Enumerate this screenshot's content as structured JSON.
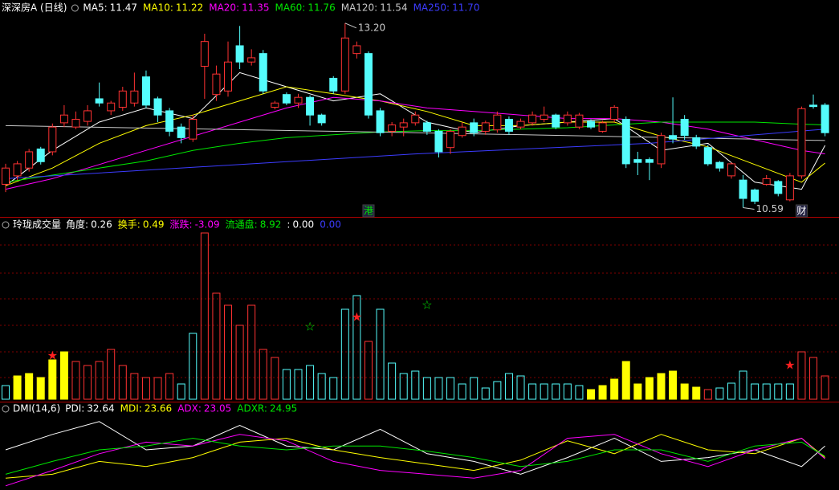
{
  "chart_data": {
    "type": "candlestick",
    "price_header": {
      "title": "深深房A (日线)",
      "items": [
        {
          "label": "MA5:",
          "value": 11.47,
          "color": "#ffffff",
          "x": [
            0,
            4,
            8,
            12,
            16,
            20,
            24,
            28,
            32,
            36,
            40,
            44,
            48,
            52,
            56,
            60,
            64,
            68,
            70
          ],
          "values": [
            10.9,
            11.4,
            11.8,
            12.0,
            11.85,
            12.5,
            12.3,
            12.1,
            12.2,
            11.8,
            11.65,
            11.75,
            11.8,
            11.85,
            11.4,
            11.5,
            10.95,
            10.85,
            11.47
          ]
        },
        {
          "label": "MA10:",
          "value": 11.22,
          "color": "#ffff00",
          "x": [
            0,
            4,
            8,
            12,
            16,
            20,
            24,
            28,
            32,
            36,
            40,
            44,
            48,
            52,
            56,
            60,
            64,
            68,
            70
          ],
          "values": [
            10.9,
            11.15,
            11.5,
            11.75,
            11.9,
            12.1,
            12.3,
            12.2,
            12.1,
            11.95,
            11.75,
            11.75,
            11.8,
            11.8,
            11.6,
            11.45,
            11.2,
            10.95,
            11.22
          ]
        },
        {
          "label": "MA20:",
          "value": 11.35,
          "color": "#ff00ff",
          "x": [
            0,
            4,
            8,
            12,
            16,
            20,
            24,
            28,
            32,
            36,
            40,
            44,
            48,
            52,
            56,
            60,
            64,
            68,
            70
          ],
          "values": [
            10.85,
            11.0,
            11.2,
            11.4,
            11.6,
            11.8,
            12.0,
            12.15,
            12.1,
            12.0,
            11.95,
            11.9,
            11.85,
            11.85,
            11.8,
            11.7,
            11.55,
            11.4,
            11.35
          ]
        },
        {
          "label": "MA60:",
          "value": 11.76,
          "color": "#00e600",
          "x": [
            0,
            4,
            8,
            12,
            16,
            20,
            24,
            28,
            32,
            36,
            40,
            44,
            48,
            52,
            56,
            60,
            64,
            68,
            70
          ],
          "values": [
            10.95,
            11.05,
            11.15,
            11.25,
            11.4,
            11.5,
            11.58,
            11.62,
            11.66,
            11.68,
            11.68,
            11.7,
            11.72,
            11.76,
            11.8,
            11.8,
            11.8,
            11.77,
            11.76
          ]
        },
        {
          "label": "MA120:",
          "value": 11.54,
          "color": "#c8c8c8",
          "x": [
            0,
            35,
            70
          ],
          "values": [
            11.75,
            11.65,
            11.54
          ]
        },
        {
          "label": "MA250:",
          "value": 11.7,
          "value_label": "11.70",
          "color": "#3c3cff",
          "x": [
            0,
            35,
            55,
            70
          ],
          "values": [
            11.0,
            11.35,
            11.5,
            11.7
          ]
        }
      ]
    },
    "ylim": [
      10.55,
      13.3
    ],
    "up_color": "#ff3232",
    "down_color": "#54fcfc",
    "candles": [
      [
        10.92,
        11.21,
        10.81,
        11.15
      ],
      [
        11.04,
        11.25,
        10.98,
        11.21
      ],
      [
        11.15,
        11.42,
        11.1,
        11.38
      ],
      [
        11.42,
        11.45,
        11.2,
        11.24
      ],
      [
        11.38,
        11.78,
        11.33,
        11.73
      ],
      [
        11.79,
        12.04,
        11.73,
        11.9
      ],
      [
        11.73,
        11.95,
        11.7,
        11.84
      ],
      [
        11.81,
        12.04,
        11.75,
        11.96
      ],
      [
        12.13,
        12.36,
        12.02,
        12.07
      ],
      [
        11.96,
        12.1,
        11.9,
        12.07
      ],
      [
        12.01,
        12.3,
        11.96,
        12.24
      ],
      [
        12.07,
        12.5,
        12.02,
        12.24
      ],
      [
        12.44,
        12.53,
        12.0,
        12.04
      ],
      [
        12.13,
        12.16,
        11.8,
        11.9
      ],
      [
        11.96,
        12.0,
        11.6,
        11.67
      ],
      [
        11.73,
        11.78,
        11.5,
        11.58
      ],
      [
        11.56,
        11.9,
        11.52,
        11.84
      ],
      [
        12.59,
        13.05,
        12.13,
        12.94
      ],
      [
        12.19,
        12.6,
        12.1,
        12.48
      ],
      [
        12.24,
        12.94,
        12.16,
        12.65
      ],
      [
        12.88,
        13.16,
        12.55,
        12.65
      ],
      [
        12.65,
        12.83,
        12.6,
        12.71
      ],
      [
        12.77,
        12.82,
        12.2,
        12.24
      ],
      [
        12.01,
        12.1,
        11.98,
        12.07
      ],
      [
        12.19,
        12.22,
        12.04,
        12.07
      ],
      [
        12.07,
        12.2,
        12.0,
        12.15
      ],
      [
        12.15,
        12.18,
        11.75,
        11.9
      ],
      [
        11.9,
        11.92,
        11.75,
        11.79
      ],
      [
        12.42,
        12.45,
        12.2,
        12.24
      ],
      [
        12.24,
        13.2,
        12.2,
        12.99
      ],
      [
        12.77,
        12.94,
        12.7,
        12.88
      ],
      [
        12.77,
        12.8,
        11.85,
        11.9
      ],
      [
        11.96,
        12.0,
        11.6,
        11.65
      ],
      [
        11.67,
        11.8,
        11.6,
        11.76
      ],
      [
        11.73,
        11.85,
        11.6,
        11.79
      ],
      [
        11.79,
        11.95,
        11.75,
        11.9
      ],
      [
        11.79,
        11.82,
        11.62,
        11.67
      ],
      [
        11.67,
        11.7,
        11.3,
        11.38
      ],
      [
        11.44,
        11.7,
        11.35,
        11.67
      ],
      [
        11.61,
        11.8,
        11.58,
        11.73
      ],
      [
        11.79,
        11.85,
        11.6,
        11.65
      ],
      [
        11.67,
        11.82,
        11.62,
        11.79
      ],
      [
        11.69,
        11.95,
        11.65,
        11.9
      ],
      [
        11.84,
        11.88,
        11.62,
        11.67
      ],
      [
        11.73,
        11.85,
        11.7,
        11.81
      ],
      [
        11.79,
        11.95,
        11.75,
        11.9
      ],
      [
        11.84,
        12.02,
        11.8,
        11.9
      ],
      [
        11.9,
        11.92,
        11.7,
        11.73
      ],
      [
        11.79,
        11.95,
        11.75,
        11.9
      ],
      [
        11.73,
        11.93,
        11.7,
        11.9
      ],
      [
        11.81,
        11.84,
        11.7,
        11.73
      ],
      [
        11.67,
        11.82,
        11.65,
        11.79
      ],
      [
        11.84,
        12.04,
        11.8,
        12.01
      ],
      [
        11.84,
        11.88,
        11.15,
        11.21
      ],
      [
        11.27,
        11.38,
        11.05,
        11.23
      ],
      [
        11.27,
        11.3,
        10.98,
        11.23
      ],
      [
        11.21,
        11.65,
        11.15,
        11.61
      ],
      [
        11.61,
        12.15,
        11.5,
        11.56
      ],
      [
        11.84,
        11.9,
        11.55,
        11.61
      ],
      [
        11.58,
        11.62,
        11.42,
        11.46
      ],
      [
        11.44,
        11.48,
        11.18,
        11.21
      ],
      [
        11.23,
        11.25,
        11.1,
        11.15
      ],
      [
        11.04,
        11.23,
        11.0,
        11.21
      ],
      [
        10.98,
        11.05,
        10.59,
        10.72
      ],
      [
        10.84,
        10.86,
        10.64,
        10.68
      ],
      [
        10.92,
        11.05,
        10.9,
        11.0
      ],
      [
        10.96,
        10.98,
        10.75,
        10.79
      ],
      [
        10.7,
        11.08,
        10.68,
        11.04
      ],
      [
        11.04,
        12.02,
        11.0,
        11.99
      ],
      [
        12.04,
        12.19,
        11.99,
        12.02
      ],
      [
        12.04,
        12.07,
        11.6,
        11.65
      ]
    ],
    "annotations": [
      {
        "index": 29,
        "value": 13.2,
        "label": "13.20"
      },
      {
        "index": 63,
        "value": 10.59,
        "label": "10.59"
      }
    ],
    "badges": [
      {
        "index": 31,
        "text": "港",
        "color": "#00e600"
      },
      {
        "index": 68,
        "text": "财",
        "color": "#ffffff"
      }
    ],
    "volume_header": {
      "title": "玲珑成交量",
      "items": [
        {
          "label": "角度:",
          "value": 0.26,
          "color": "#ffffff"
        },
        {
          "label": "换手:",
          "value": 0.49,
          "color": "#ffff00"
        },
        {
          "label": "涨跌:",
          "value": -3.09,
          "color": "#ff00ff"
        },
        {
          "label": "流通盘:",
          "value": 8.92,
          "color": "#00e600"
        },
        {
          "label": ":",
          "value": 0,
          "value_label": "0.00",
          "color": "#ffffff"
        },
        {
          "value": 0,
          "value_label": "0.00",
          "color": "#3c3cff"
        }
      ]
    },
    "volume_ylim": [
      0,
      215
    ],
    "filled_color": "#ffff00",
    "volume": [
      17,
      29,
      32,
      27,
      49,
      59,
      47,
      42,
      47,
      62,
      42,
      32,
      27,
      27,
      32,
      19,
      82,
      207,
      132,
      117,
      92,
      117,
      62,
      52,
      37,
      37,
      42,
      32,
      27,
      112,
      129,
      72,
      112,
      45,
      32,
      35,
      27,
      27,
      27,
      19,
      27,
      14,
      22,
      32,
      29,
      19,
      19,
      19,
      19,
      17,
      12,
      17,
      25,
      47,
      19,
      27,
      32,
      35,
      19,
      15,
      12,
      14,
      20,
      35,
      19,
      19,
      19,
      19,
      59,
      52,
      29
    ],
    "volume_colors": [
      "#54fcfc",
      "#ffff00",
      "#ffff00",
      "#ffff00",
      "#ffff00",
      "#ffff00",
      "#ff3232",
      "#ff3232",
      "#ff3232",
      "#ff3232",
      "#ff3232",
      "#ff3232",
      "#ff3232",
      "#ff3232",
      "#ff3232",
      "#54fcfc",
      "#54fcfc",
      "#ff3232",
      "#ff3232",
      "#ff3232",
      "#ff3232",
      "#ff3232",
      "#ff3232",
      "#ff3232",
      "#54fcfc",
      "#54fcfc",
      "#54fcfc",
      "#54fcfc",
      "#54fcfc",
      "#54fcfc",
      "#54fcfc",
      "#ff3232",
      "#54fcfc",
      "#54fcfc",
      "#54fcfc",
      "#54fcfc",
      "#54fcfc",
      "#54fcfc",
      "#54fcfc",
      "#54fcfc",
      "#54fcfc",
      "#54fcfc",
      "#54fcfc",
      "#54fcfc",
      "#54fcfc",
      "#54fcfc",
      "#54fcfc",
      "#54fcfc",
      "#54fcfc",
      "#54fcfc",
      "#ffff00",
      "#ffff00",
      "#ffff00",
      "#ffff00",
      "#ffff00",
      "#ffff00",
      "#ffff00",
      "#ffff00",
      "#ffff00",
      "#ffff00",
      "#ff3232",
      "#54fcfc",
      "#54fcfc",
      "#54fcfc",
      "#54fcfc",
      "#54fcfc",
      "#54fcfc",
      "#54fcfc",
      "#ff3232",
      "#ff3232",
      "#ff3232"
    ],
    "signals": [
      {
        "index": 4,
        "value": 54,
        "symbol": "★",
        "color": "#ff2020"
      },
      {
        "index": 26,
        "value": 90,
        "symbol": "☆",
        "color": "#00e600"
      },
      {
        "index": 30,
        "value": 102,
        "symbol": "★",
        "color": "#ff2020"
      },
      {
        "index": 36,
        "value": 117,
        "symbol": "☆",
        "color": "#00e600"
      },
      {
        "index": 67,
        "value": 42,
        "symbol": "★",
        "color": "#ff2020"
      }
    ],
    "dmi_header": {
      "title": "DMI(14,6)",
      "items": [
        {
          "label": "PDI:",
          "value": 32.64,
          "color": "#ffffff",
          "x": [
            0,
            4,
            8,
            12,
            16,
            20,
            24,
            28,
            32,
            36,
            40,
            44,
            48,
            52,
            56,
            60,
            64,
            68,
            70
          ],
          "values": [
            30,
            42,
            52,
            30,
            33,
            49,
            33,
            30,
            46,
            27,
            21,
            11,
            24,
            39,
            21,
            24,
            30,
            17,
            33
          ]
        },
        {
          "label": "MDI:",
          "value": 23.66,
          "color": "#ffff00",
          "x": [
            0,
            4,
            8,
            12,
            16,
            20,
            24,
            28,
            32,
            36,
            40,
            44,
            48,
            52,
            56,
            60,
            64,
            68,
            70
          ],
          "values": [
            8,
            11,
            21,
            17,
            24,
            36,
            39,
            30,
            24,
            19,
            14,
            22,
            37,
            27,
            42,
            30,
            27,
            39,
            24
          ]
        },
        {
          "label": "ADX:",
          "value": 23.05,
          "color": "#ff00ff",
          "x": [
            0,
            4,
            8,
            12,
            16,
            20,
            24,
            28,
            32,
            36,
            40,
            44,
            48,
            52,
            56,
            60,
            64,
            68,
            70
          ],
          "values": [
            2,
            14,
            27,
            36,
            33,
            42,
            37,
            21,
            14,
            11,
            8,
            14,
            39,
            42,
            27,
            17,
            30,
            39,
            23
          ]
        },
        {
          "label": "ADXR:",
          "value": 24.95,
          "color": "#00e600",
          "x": [
            0,
            4,
            8,
            12,
            16,
            20,
            24,
            28,
            32,
            36,
            40,
            44,
            48,
            52,
            56,
            60,
            64,
            68,
            70
          ],
          "values": [
            11,
            21,
            30,
            33,
            39,
            33,
            30,
            33,
            33,
            29,
            24,
            17,
            21,
            30,
            30,
            21,
            33,
            36,
            25
          ]
        }
      ]
    },
    "dmi_ylim": [
      0,
      60
    ]
  }
}
